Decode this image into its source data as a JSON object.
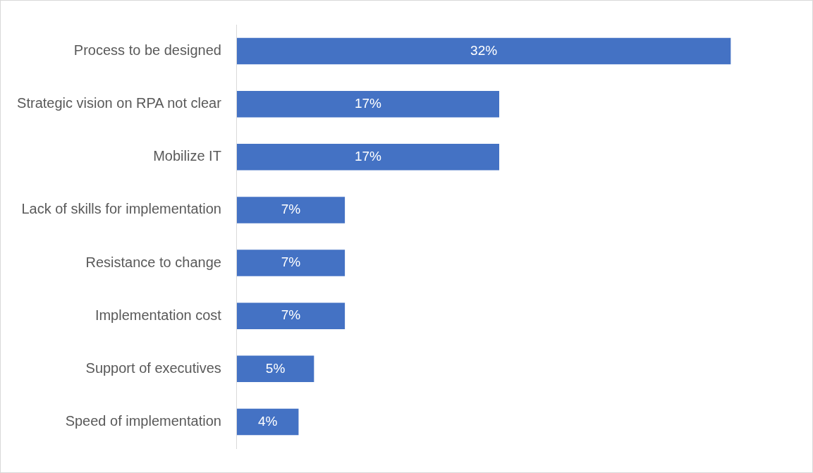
{
  "chart_data": {
    "type": "bar",
    "orientation": "horizontal",
    "categories": [
      "Process to be designed",
      "Strategic vision on RPA not clear",
      "Mobilize IT",
      "Lack of skills for implementation",
      "Resistance to change",
      "Implementation cost",
      "Support of executives",
      "Speed of implementation"
    ],
    "values": [
      32,
      17,
      17,
      7,
      7,
      7,
      5,
      4
    ],
    "value_labels": [
      "32%",
      "17%",
      "17%",
      "7%",
      "7%",
      "7%",
      "5%",
      "4%"
    ],
    "color": "#4472c4"
  }
}
